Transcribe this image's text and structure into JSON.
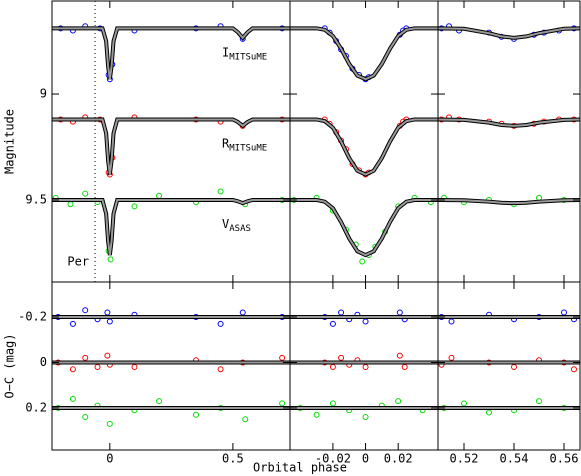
{
  "chart_data": [
    {
      "type": "scatter",
      "ylabel": "Magnitude",
      "xlim": [
        -0.235,
        0.732
      ],
      "ylim": [
        8.561,
        9.887
      ],
      "y_inverted": true,
      "yticks": [
        9,
        9.5
      ],
      "periastron": {
        "x": -0.06,
        "label": "Per"
      },
      "model_color": "#999999",
      "model_x": [
        -0.235,
        -0.03,
        -0.015,
        -0.007,
        0,
        0.007,
        0.015,
        0.03,
        0.5,
        0.52,
        0.54,
        0.56,
        0.58,
        0.732
      ],
      "series": [
        {
          "name": "I",
          "subscript": "MITSuME",
          "color": "#0000ff",
          "x": [
            -0.2,
            -0.15,
            -0.1,
            -0.04,
            -0.005,
            0,
            0.01,
            0.1,
            0.35,
            0.45,
            0.54,
            0.7
          ],
          "values": [
            8.69,
            8.7,
            8.68,
            8.69,
            8.91,
            8.93,
            8.86,
            8.7,
            8.69,
            8.68,
            8.74,
            8.69
          ],
          "model": [
            8.69,
            8.69,
            8.75,
            8.87,
            8.93,
            8.87,
            8.75,
            8.69,
            8.69,
            8.708,
            8.735,
            8.708,
            8.69,
            8.69
          ]
        },
        {
          "name": "R",
          "subscript": "MITSuME",
          "color": "#ff0000",
          "x": [
            -0.2,
            -0.15,
            -0.1,
            -0.04,
            -0.005,
            0,
            0.01,
            0.1,
            0.35,
            0.45,
            0.54,
            0.7
          ],
          "values": [
            9.12,
            9.13,
            9.11,
            9.12,
            9.37,
            9.38,
            9.3,
            9.11,
            9.12,
            9.13,
            9.15,
            9.12
          ],
          "model": [
            9.12,
            9.12,
            9.185,
            9.315,
            9.38,
            9.315,
            9.185,
            9.12,
            9.12,
            9.132,
            9.15,
            9.132,
            9.12,
            9.12
          ]
        },
        {
          "name": "V",
          "subscript": "ASAS",
          "color": "#00e000",
          "x": [
            -0.22,
            -0.16,
            -0.1,
            -0.05,
            -0.005,
            0.003,
            0.1,
            0.2,
            0.35,
            0.45,
            0.55,
            0.7
          ],
          "values": [
            9.49,
            9.52,
            9.47,
            9.51,
            9.74,
            9.78,
            9.53,
            9.48,
            9.51,
            9.46,
            9.52,
            9.5
          ],
          "model": [
            9.5,
            9.5,
            9.565,
            9.695,
            9.76,
            9.695,
            9.565,
            9.5,
            9.5,
            9.506,
            9.515,
            9.506,
            9.5,
            9.5
          ]
        }
      ]
    },
    {
      "type": "scatter",
      "xlim": [
        -0.0463,
        0.0444
      ],
      "ylim": [
        8.561,
        9.887
      ],
      "y_inverted": true,
      "model_color": "#999999",
      "model_x": [
        -0.0463,
        -0.03,
        -0.025,
        -0.02,
        -0.015,
        -0.01,
        -0.005,
        0,
        0.005,
        0.01,
        0.015,
        0.02,
        0.025,
        0.03,
        0.0444
      ],
      "series": [
        {
          "color": "#0000ff",
          "x": [
            -0.025,
            -0.022,
            -0.018,
            -0.015,
            -0.012,
            -0.008,
            -0.004,
            0,
            0.002,
            0.021,
            0.023,
            0.025
          ],
          "values": [
            8.69,
            8.71,
            8.75,
            8.79,
            8.82,
            8.88,
            8.91,
            8.93,
            8.92,
            8.72,
            8.7,
            8.69
          ],
          "model": [
            8.69,
            8.69,
            8.697,
            8.726,
            8.786,
            8.858,
            8.913,
            8.93,
            8.913,
            8.858,
            8.786,
            8.726,
            8.697,
            8.69,
            8.69
          ]
        },
        {
          "color": "#ff0000",
          "x": [
            -0.025,
            -0.022,
            -0.018,
            -0.015,
            -0.012,
            -0.008,
            -0.004,
            0,
            0.002,
            0.021,
            0.023,
            0.025
          ],
          "values": [
            9.12,
            9.14,
            9.18,
            9.22,
            9.26,
            9.33,
            9.36,
            9.38,
            9.37,
            9.15,
            9.13,
            9.12
          ],
          "model": [
            9.12,
            9.12,
            9.128,
            9.159,
            9.224,
            9.302,
            9.362,
            9.38,
            9.362,
            9.302,
            9.224,
            9.159,
            9.128,
            9.12,
            9.12
          ]
        },
        {
          "color": "#00e000",
          "x": [
            -0.044,
            -0.03,
            -0.02,
            -0.012,
            -0.006,
            -0.002,
            0.002,
            0.006,
            0.012,
            0.02,
            0.03,
            0.04
          ],
          "values": [
            9.5,
            9.49,
            9.55,
            9.64,
            9.71,
            9.79,
            9.76,
            9.72,
            9.65,
            9.53,
            9.49,
            9.51
          ],
          "model": [
            9.5,
            9.5,
            9.508,
            9.539,
            9.604,
            9.682,
            9.742,
            9.76,
            9.742,
            9.682,
            9.604,
            9.539,
            9.508,
            9.5,
            9.5
          ]
        }
      ]
    },
    {
      "type": "scatter",
      "xlim": [
        0.5096,
        0.5664
      ],
      "ylim": [
        8.561,
        9.887
      ],
      "y_inverted": true,
      "model_color": "#999999",
      "model_x": [
        0.5096,
        0.52,
        0.53,
        0.535,
        0.54,
        0.545,
        0.55,
        0.56,
        0.5664
      ],
      "series": [
        {
          "color": "#0000ff",
          "x": [
            0.511,
            0.514,
            0.518,
            0.53,
            0.535,
            0.54,
            0.548,
            0.552,
            0.558,
            0.564
          ],
          "values": [
            8.69,
            8.68,
            8.7,
            8.71,
            8.73,
            8.74,
            8.72,
            8.71,
            8.7,
            8.69
          ],
          "model": [
            8.69,
            8.692,
            8.713,
            8.728,
            8.735,
            8.728,
            8.713,
            8.692,
            8.69
          ]
        },
        {
          "color": "#ff0000",
          "x": [
            0.511,
            0.514,
            0.518,
            0.53,
            0.535,
            0.54,
            0.548,
            0.552,
            0.558,
            0.564
          ],
          "values": [
            9.12,
            9.11,
            9.12,
            9.13,
            9.14,
            9.15,
            9.14,
            9.13,
            9.12,
            9.12
          ],
          "model": [
            9.12,
            9.122,
            9.135,
            9.146,
            9.15,
            9.146,
            9.135,
            9.122,
            9.12
          ]
        },
        {
          "color": "#00e000",
          "x": [
            0.512,
            0.52,
            0.53,
            0.54,
            0.55,
            0.56
          ],
          "values": [
            9.49,
            9.51,
            9.5,
            9.52,
            9.49,
            9.5
          ],
          "model": [
            9.5,
            9.501,
            9.508,
            9.513,
            9.515,
            9.513,
            9.508,
            9.501,
            9.5
          ]
        }
      ]
    },
    {
      "type": "residual",
      "ylabel": "O−C (mag)",
      "xlim": [
        -0.235,
        0.732
      ],
      "ylim": [
        -0.354,
        0.385
      ],
      "y_inverted": true,
      "xticks": [
        0,
        0.5
      ],
      "yticks": [
        -0.2,
        0,
        0.2
      ],
      "model_color": "#999999",
      "series": [
        {
          "color": "#0000ff",
          "offset": -0.2,
          "x": [
            -0.21,
            -0.15,
            -0.1,
            -0.05,
            -0.01,
            0,
            0.1,
            0.35,
            0.45,
            0.54,
            0.7
          ],
          "values": [
            -0.2,
            -0.17,
            -0.23,
            -0.19,
            -0.22,
            -0.18,
            -0.21,
            -0.2,
            -0.17,
            -0.22,
            -0.2
          ]
        },
        {
          "color": "#ff0000",
          "offset": 0,
          "x": [
            -0.21,
            -0.15,
            -0.1,
            -0.05,
            -0.01,
            0,
            0.1,
            0.35,
            0.45,
            0.54,
            0.7
          ],
          "values": [
            0,
            0.03,
            -0.02,
            0.02,
            -0.03,
            0.01,
            0.02,
            -0.01,
            0.03,
            0,
            -0.02
          ]
        },
        {
          "color": "#00e000",
          "offset": 0.2,
          "x": [
            -0.21,
            -0.15,
            -0.1,
            -0.05,
            0,
            0.1,
            0.2,
            0.35,
            0.45,
            0.55,
            0.7
          ],
          "values": [
            0.2,
            0.16,
            0.24,
            0.19,
            0.27,
            0.21,
            0.17,
            0.23,
            0.2,
            0.25,
            0.18
          ]
        }
      ]
    },
    {
      "type": "residual",
      "xlabel": "Orbital phase",
      "xlim": [
        -0.0463,
        0.0444
      ],
      "ylim": [
        -0.354,
        0.385
      ],
      "y_inverted": true,
      "xticks": [
        -0.02,
        0,
        0.02
      ],
      "model_color": "#999999",
      "series": [
        {
          "color": "#0000ff",
          "offset": -0.2,
          "x": [
            -0.025,
            -0.02,
            -0.015,
            -0.01,
            -0.005,
            0,
            0.021,
            0.024
          ],
          "values": [
            -0.2,
            -0.17,
            -0.22,
            -0.19,
            -0.21,
            -0.18,
            -0.22,
            -0.19
          ]
        },
        {
          "color": "#ff0000",
          "offset": 0,
          "x": [
            -0.025,
            -0.02,
            -0.015,
            -0.01,
            -0.005,
            0,
            0.021,
            0.024
          ],
          "values": [
            0,
            0.02,
            -0.02,
            0.01,
            -0.01,
            0.02,
            -0.03,
            0.02
          ]
        },
        {
          "color": "#00e000",
          "offset": 0.2,
          "x": [
            -0.04,
            -0.03,
            -0.02,
            -0.01,
            0,
            0.01,
            0.02,
            0.035
          ],
          "values": [
            0.2,
            0.23,
            0.18,
            0.21,
            0.24,
            0.19,
            0.17,
            0.21
          ]
        }
      ]
    },
    {
      "type": "residual",
      "xlim": [
        0.5096,
        0.5664
      ],
      "ylim": [
        -0.354,
        0.385
      ],
      "y_inverted": true,
      "xticks": [
        0.52,
        0.54,
        0.56
      ],
      "model_color": "#999999",
      "series": [
        {
          "color": "#0000ff",
          "offset": -0.2,
          "x": [
            0.511,
            0.515,
            0.53,
            0.54,
            0.55,
            0.56,
            0.564
          ],
          "values": [
            -0.2,
            -0.18,
            -0.21,
            -0.19,
            -0.2,
            -0.22,
            -0.19
          ]
        },
        {
          "color": "#ff0000",
          "offset": 0,
          "x": [
            0.511,
            0.515,
            0.53,
            0.54,
            0.55,
            0.56,
            0.564
          ],
          "values": [
            0.01,
            -0.02,
            0,
            0.02,
            -0.01,
            0,
            0.03
          ]
        },
        {
          "color": "#00e000",
          "offset": 0.2,
          "x": [
            0.512,
            0.52,
            0.53,
            0.54,
            0.55,
            0.56
          ],
          "values": [
            0.2,
            0.18,
            0.22,
            0.21,
            0.17,
            0.2
          ]
        }
      ]
    }
  ]
}
